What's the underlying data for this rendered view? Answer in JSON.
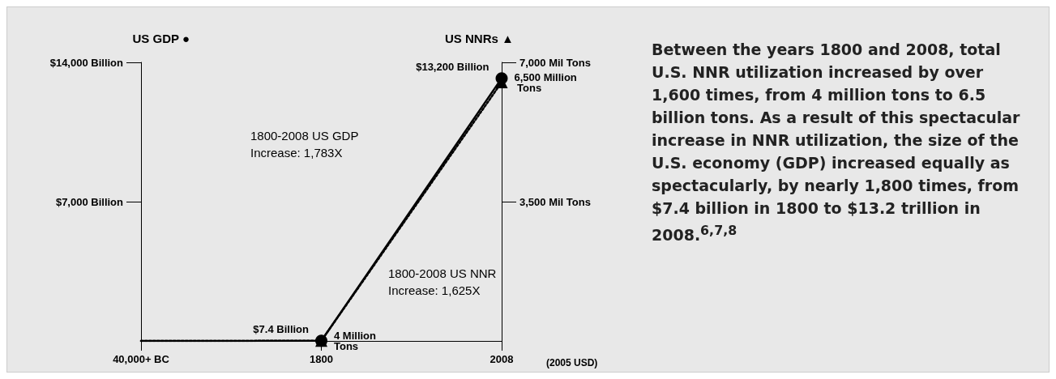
{
  "chart_data": {
    "type": "line",
    "ylabel": "US GDP ●",
    "y2label": "US NNRs ▲",
    "categories": [
      "40,000+ BC",
      "1800",
      "2008"
    ],
    "series": [
      {
        "name": null,
        "color": "#000000",
        "values": [
          0,
          7.4,
          13200
        ],
        "marker": "circle",
        "line_style": "solid",
        "value_labels": [
          null,
          "$7.4 Billion",
          "$13,200 Billion"
        ]
      },
      {
        "name": null,
        "color": "#000000",
        "values": [
          0,
          4,
          6500
        ],
        "axis": "y2",
        "marker": "triangle",
        "line_style": "dotted",
        "value_labels": [
          null,
          "4 Million Tons",
          "6,500 Million Tons"
        ]
      }
    ],
    "ylim": [
      0,
      14000
    ],
    "yticks": [
      {
        "value": 7000,
        "label": "$7,000 Billion"
      },
      {
        "value": 14000,
        "label": "$14,000 Billion"
      }
    ],
    "y2lim": [
      0,
      7000
    ],
    "y2ticks": [
      {
        "value": 3500,
        "label": "3,500 Mil Tons"
      },
      {
        "value": 7000,
        "label": "7,000 Mil Tons"
      }
    ],
    "grid": false,
    "annotations": [
      "1800-2008 US GDP Increase: 1,783X",
      "1800-2008 US NNR Increase: 1,625X",
      "(2005 USD)",
      "Between the years 1800 and 2008, total U.S. NNR utilization increased by over 1,600 times, from 4 million tons to 6.5 billion tons. As a result of this spectacular increase in NNR utilization, the size of the U.S. economy (GDP) increased equally as spectacularly, by nearly 1,800 times, from $7.4 billion in 1800 to $13.2 trillion in 2008.$^{6,7,8}$"
    ]
  }
}
